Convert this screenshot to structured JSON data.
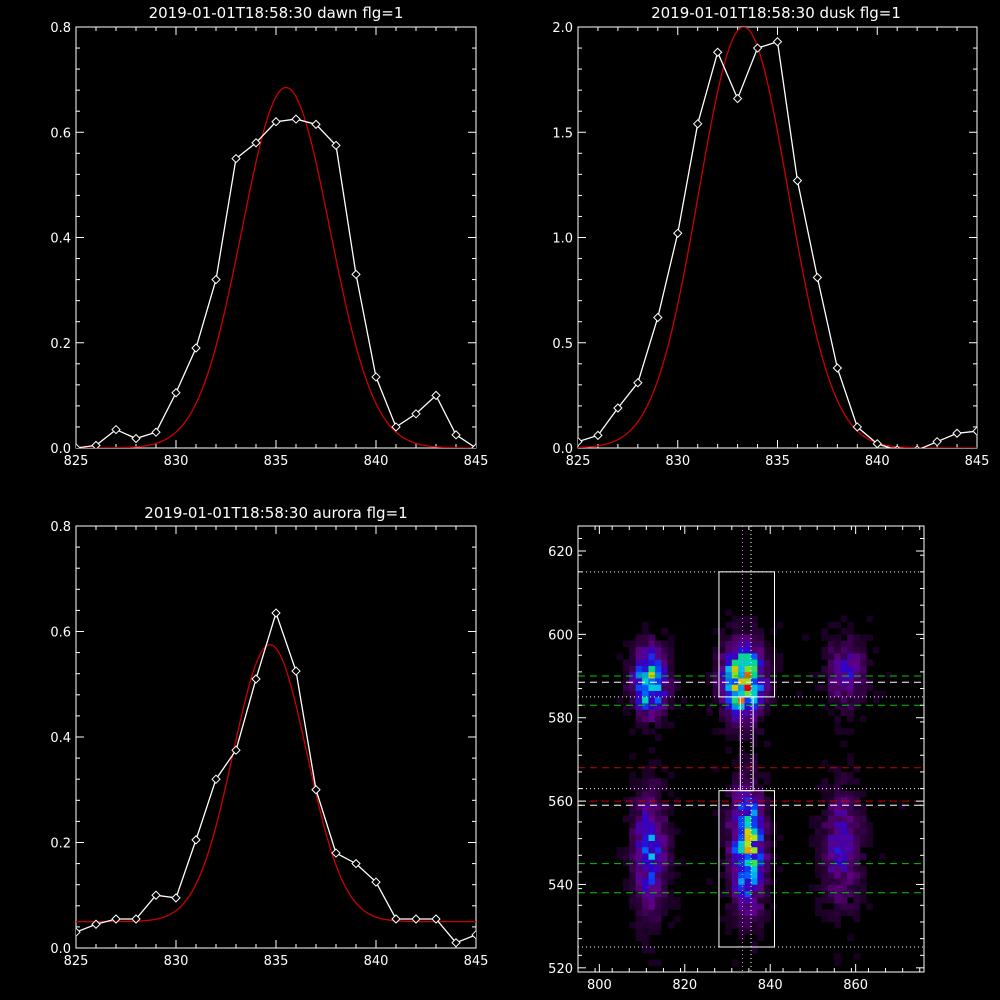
{
  "chart_data": [
    {
      "type": "line",
      "title": "2019-01-01T18:58:30 dawn flg=1",
      "xlim": [
        825,
        845
      ],
      "ylim": [
        0,
        0.8
      ],
      "xticks": [
        825,
        830,
        835,
        840,
        845
      ],
      "yticks": [
        0.0,
        0.2,
        0.4,
        0.6,
        0.8
      ],
      "ytick_labels": [
        "0.0",
        "0.2",
        "0.4",
        "0.6",
        "0.8"
      ],
      "series": [
        {
          "color": "#ffffff",
          "marker": "diamond",
          "x": [
            825,
            826,
            827,
            828,
            829,
            830,
            831,
            832,
            833,
            834,
            835,
            836,
            837,
            838,
            839,
            840,
            841,
            842,
            843,
            844,
            845
          ],
          "y": [
            0.0,
            0.005,
            0.035,
            0.018,
            0.03,
            0.105,
            0.19,
            0.32,
            0.55,
            0.58,
            0.62,
            0.625,
            0.615,
            0.575,
            0.33,
            0.135,
            0.04,
            0.065,
            0.1,
            0.025,
            0.0
          ]
        },
        {
          "color": "#cc0000",
          "fit": "gaussian",
          "amp": 0.685,
          "center": 835.5,
          "sigma": 2.2,
          "offset": 0.0
        }
      ]
    },
    {
      "type": "line",
      "title": "2019-01-01T18:58:30 dusk flg=1",
      "xlim": [
        825,
        845
      ],
      "ylim": [
        0,
        2.0
      ],
      "xticks": [
        825,
        830,
        835,
        840,
        845
      ],
      "yticks": [
        0.0,
        0.5,
        1.0,
        1.5,
        2.0
      ],
      "ytick_labels": [
        "0.0",
        "0.5",
        "1.0",
        "1.5",
        "2.0"
      ],
      "series": [
        {
          "color": "#ffffff",
          "marker": "diamond",
          "x": [
            825,
            826,
            827,
            828,
            829,
            830,
            831,
            832,
            833,
            834,
            835,
            836,
            837,
            838,
            839,
            840,
            841,
            842,
            843,
            844,
            845
          ],
          "y": [
            0.03,
            0.06,
            0.19,
            0.31,
            0.62,
            1.02,
            1.54,
            1.88,
            1.66,
            1.9,
            1.93,
            1.27,
            0.81,
            0.38,
            0.1,
            0.02,
            -0.01,
            -0.01,
            0.03,
            0.07,
            0.08
          ]
        },
        {
          "color": "#cc0000",
          "fit": "gaussian",
          "amp": 2.0,
          "center": 833.3,
          "sigma": 2.25,
          "offset": 0.0
        }
      ]
    },
    {
      "type": "line",
      "title": "2019-01-01T18:58:30 aurora flg=1",
      "xlim": [
        825,
        845
      ],
      "ylim": [
        0,
        0.8
      ],
      "xticks": [
        825,
        830,
        835,
        840,
        845
      ],
      "yticks": [
        0.0,
        0.2,
        0.4,
        0.6,
        0.8
      ],
      "ytick_labels": [
        "0.0",
        "0.2",
        "0.4",
        "0.6",
        "0.8"
      ],
      "series": [
        {
          "color": "#ffffff",
          "marker": "diamond",
          "x": [
            825,
            826,
            827,
            828,
            829,
            830,
            831,
            832,
            833,
            834,
            835,
            836,
            837,
            838,
            839,
            840,
            841,
            842,
            843,
            844,
            845
          ],
          "y": [
            0.03,
            0.045,
            0.055,
            0.055,
            0.1,
            0.095,
            0.205,
            0.32,
            0.375,
            0.51,
            0.635,
            0.525,
            0.3,
            0.18,
            0.16,
            0.125,
            0.055,
            0.055,
            0.055,
            0.01,
            0.025
          ]
        },
        {
          "color": "#cc0000",
          "fit": "gaussian",
          "amp": 0.525,
          "center": 834.7,
          "sigma": 1.85,
          "offset": 0.05
        }
      ]
    },
    {
      "type": "heatmap",
      "title": "",
      "xlim": [
        795,
        876
      ],
      "ylim": [
        519,
        626
      ],
      "xticks": [
        800,
        820,
        840,
        860
      ],
      "yticks": [
        520,
        540,
        560,
        580,
        600,
        620
      ],
      "ytick_labels": [
        "520",
        "540",
        "560",
        "580",
        "600",
        "620"
      ],
      "emission_blobs": [
        {
          "x": 811,
          "y": 588,
          "sx": 2.5,
          "sy": 5,
          "amp": 0.75
        },
        {
          "x": 811,
          "y": 547,
          "sx": 2.5,
          "sy": 9,
          "amp": 0.45
        },
        {
          "x": 833,
          "y": 588,
          "sx": 3,
          "sy": 5.5,
          "amp": 1.0
        },
        {
          "x": 834,
          "y": 548,
          "sx": 2.5,
          "sy": 9,
          "amp": 0.75
        },
        {
          "x": 857,
          "y": 590,
          "sx": 3,
          "sy": 5,
          "amp": 0.3
        },
        {
          "x": 856,
          "y": 548,
          "sx": 3,
          "sy": 9,
          "amp": 0.3
        }
      ],
      "boxes": [
        {
          "x0": 828,
          "x1": 841,
          "y0": 585,
          "y1": 615,
          "color": "#ffffff"
        },
        {
          "x0": 828,
          "x1": 841,
          "y0": 525,
          "y1": 562.5,
          "color": "#ffffff"
        },
        {
          "x0": 833,
          "x1": 836,
          "y0": 562.5,
          "y1": 585,
          "color": "#ffffff"
        }
      ],
      "hlines": [
        {
          "y": 615,
          "color": "#ffffff",
          "style": "dotted"
        },
        {
          "y": 590,
          "color": "#00cc00",
          "style": "dashed"
        },
        {
          "y": 588.5,
          "color": "#ffffff",
          "style": "dashed"
        },
        {
          "y": 585,
          "color": "#ffffff",
          "style": "dotted"
        },
        {
          "y": 583,
          "color": "#00cc00",
          "style": "dashed"
        },
        {
          "y": 568,
          "color": "#cc0000",
          "style": "dashed"
        },
        {
          "y": 563,
          "color": "#ffffff",
          "style": "dotted"
        },
        {
          "y": 560,
          "color": "#cc0000",
          "style": "dashed"
        },
        {
          "y": 559,
          "color": "#ffffff",
          "style": "dashed"
        },
        {
          "y": 545,
          "color": "#00cc00",
          "style": "dashed"
        },
        {
          "y": 538,
          "color": "#00cc00",
          "style": "dashed"
        },
        {
          "y": 525,
          "color": "#ffffff",
          "style": "dotted"
        }
      ],
      "vlines": [
        {
          "x": 833.5,
          "color": "#ff66ff",
          "style": "dotted"
        },
        {
          "x": 835.5,
          "color": "#ffffff",
          "style": "dotted"
        }
      ]
    }
  ]
}
